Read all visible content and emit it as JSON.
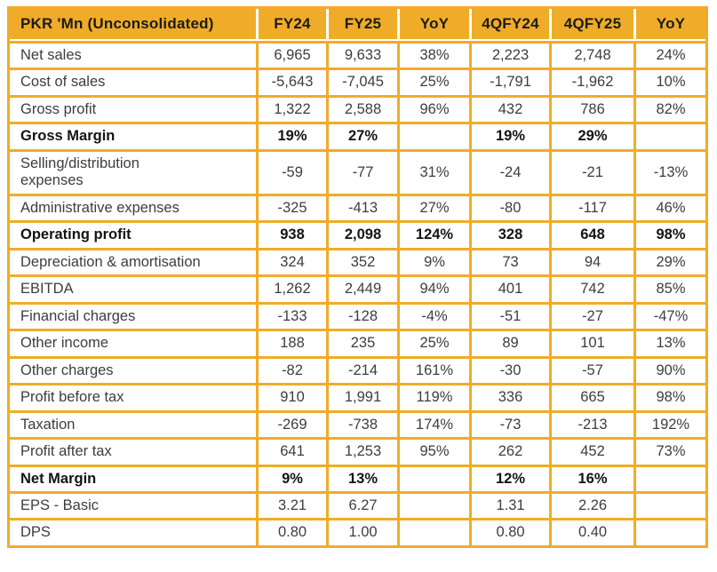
{
  "chart_data": {
    "type": "table",
    "title": "PKR 'Mn (Unconsolidated)",
    "columns": [
      "PKR 'Mn (Unconsolidated)",
      "FY24",
      "FY25",
      "YoY",
      "4QFY24",
      "4QFY25",
      "YoY"
    ],
    "rows": [
      {
        "label": "Net sales",
        "bold": false,
        "values": [
          "6,965",
          "9,633",
          "38%",
          "2,223",
          "2,748",
          "24%"
        ]
      },
      {
        "label": "Cost of sales",
        "bold": false,
        "values": [
          "-5,643",
          "-7,045",
          "25%",
          "-1,791",
          "-1,962",
          "10%"
        ]
      },
      {
        "label": "Gross profit",
        "bold": false,
        "values": [
          "1,322",
          "2,588",
          "96%",
          "432",
          "786",
          "82%"
        ]
      },
      {
        "label": "Gross Margin",
        "bold": true,
        "values": [
          "19%",
          "27%",
          "",
          "19%",
          "29%",
          ""
        ]
      },
      {
        "label": "Selling/distribution expenses",
        "bold": false,
        "values": [
          "-59",
          "-77",
          "31%",
          "-24",
          "-21",
          "-13%"
        ]
      },
      {
        "label": "Administrative expenses",
        "bold": false,
        "values": [
          "-325",
          "-413",
          "27%",
          "-80",
          "-117",
          "46%"
        ]
      },
      {
        "label": "Operating profit",
        "bold": true,
        "values": [
          "938",
          "2,098",
          "124%",
          "328",
          "648",
          "98%"
        ]
      },
      {
        "label": "Depreciation & amortisation",
        "bold": false,
        "values": [
          "324",
          "352",
          "9%",
          "73",
          "94",
          "29%"
        ]
      },
      {
        "label": "EBITDA",
        "bold": false,
        "values": [
          "1,262",
          "2,449",
          "94%",
          "401",
          "742",
          "85%"
        ]
      },
      {
        "label": "Financial charges",
        "bold": false,
        "values": [
          "-133",
          "-128",
          "-4%",
          "-51",
          "-27",
          "-47%"
        ]
      },
      {
        "label": "Other income",
        "bold": false,
        "values": [
          "188",
          "235",
          "25%",
          "89",
          "101",
          "13%"
        ]
      },
      {
        "label": "Other charges",
        "bold": false,
        "values": [
          "-82",
          "-214",
          "161%",
          "-30",
          "-57",
          "90%"
        ]
      },
      {
        "label": "Profit before tax",
        "bold": false,
        "values": [
          "910",
          "1,991",
          "119%",
          "336",
          "665",
          "98%"
        ]
      },
      {
        "label": "Taxation",
        "bold": false,
        "values": [
          "-269",
          "-738",
          "174%",
          "-73",
          "-213",
          "192%"
        ]
      },
      {
        "label": "Profit after tax",
        "bold": false,
        "values": [
          "641",
          "1,253",
          "95%",
          "262",
          "452",
          "73%"
        ]
      },
      {
        "label": "Net Margin",
        "bold": true,
        "values": [
          "9%",
          "13%",
          "",
          "12%",
          "16%",
          ""
        ]
      },
      {
        "label": "EPS - Basic",
        "bold": false,
        "values": [
          "3.21",
          "6.27",
          "",
          "1.31",
          "2.26",
          ""
        ]
      },
      {
        "label": "DPS",
        "bold": false,
        "values": [
          "0.80",
          "1.00",
          "",
          "0.80",
          "0.40",
          ""
        ]
      }
    ],
    "layout_hints": {
      "grid": "on",
      "header_style": "gold-fill"
    },
    "colors": {
      "gold_accent": "#F0AC28",
      "header_text": "#1c1c1c",
      "body_text": "#3d3d3d",
      "background": "#ffffff"
    }
  }
}
